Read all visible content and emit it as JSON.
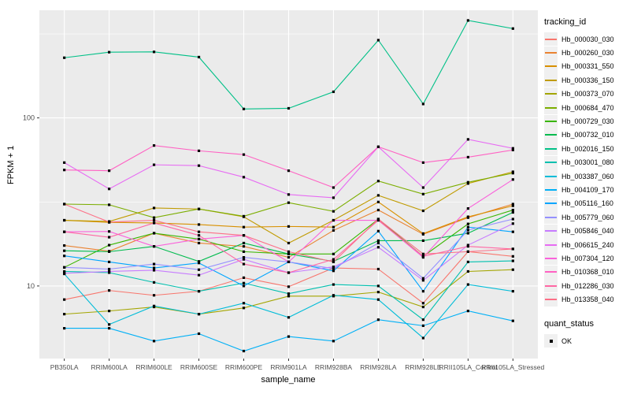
{
  "figure": {
    "panel_bg": "#EBEBEB",
    "gridline_color": "#FFFFFF",
    "tick_label_color": "#4D4D4D",
    "text_color": "#000000",
    "legend": {
      "tracking_title": "tracking_id",
      "quant_title": "quant_status",
      "quant_label": "OK"
    }
  },
  "chart_data": {
    "type": "line",
    "title": "",
    "xlabel": "sample_name",
    "ylabel": "FPKM + 1",
    "y_scale": "log10",
    "ylim": [
      3.7,
      437
    ],
    "y_major_ticks": [
      {
        "label": "100",
        "value": 100
      },
      {
        "label": "10",
        "value": 10
      }
    ],
    "y_minor_gridlines": [
      316,
      31.6
    ],
    "categories": [
      "PB350LA",
      "RRIM600LA",
      "RRIM600LE",
      "RRIM600SE",
      "RRIM600PE",
      "RRIM901LA",
      "RRIM928BA",
      "RRIM928LA",
      "RRIM928LE",
      "RRII105LA_Control",
      "RRII105LA_Stressed"
    ],
    "point_shape": "black-square",
    "legend_position": "right",
    "series": [
      {
        "name": "Hb_000030_030",
        "color": "#F8766D",
        "values": [
          8.3,
          9.4,
          8.8,
          9.3,
          11.2,
          9.9,
          12.8,
          12.6,
          7.9,
          16.0,
          15.0
        ]
      },
      {
        "name": "Hb_000260_030",
        "color": "#EA8331",
        "values": [
          17.4,
          16.1,
          20.6,
          18.0,
          17.2,
          14.8,
          21.4,
          28.3,
          20.3,
          25.5,
          30.7
        ]
      },
      {
        "name": "Hb_000331_550",
        "color": "#D89000",
        "values": [
          24.6,
          23.9,
          23.7,
          23.2,
          22.4,
          22.6,
          22.4,
          31.6,
          20.5,
          25.8,
          30.0
        ]
      },
      {
        "name": "Hb_000336_150",
        "color": "#C09B00",
        "values": [
          24.6,
          24.2,
          29.1,
          28.7,
          25.8,
          18.0,
          24.6,
          34.6,
          28.0,
          40.7,
          47.8
        ]
      },
      {
        "name": "Hb_000373_070",
        "color": "#A3A500",
        "values": [
          6.8,
          7.1,
          7.5,
          6.8,
          7.4,
          8.7,
          8.7,
          9.2,
          7.5,
          12.2,
          12.5
        ]
      },
      {
        "name": "Hb_000684_470",
        "color": "#7CAE00",
        "values": [
          30.7,
          30.4,
          25.5,
          28.7,
          26.0,
          31.3,
          27.8,
          42.1,
          35.2,
          41.4,
          46.9
        ]
      },
      {
        "name": "Hb_000729_030",
        "color": "#39B600",
        "values": [
          12.9,
          17.5,
          20.6,
          19.0,
          16.0,
          15.5,
          15.5,
          25.0,
          15.0,
          23.4,
          28.3
        ]
      },
      {
        "name": "Hb_000732_010",
        "color": "#00BB4E",
        "values": [
          16.2,
          16.0,
          17.2,
          14.0,
          18.0,
          15.5,
          14.0,
          18.6,
          18.6,
          20.6,
          27.4
        ]
      },
      {
        "name": "Hb_002016_150",
        "color": "#00C087",
        "values": [
          228,
          246,
          247,
          230,
          113,
          114,
          143,
          290,
          121,
          380,
          340
        ]
      },
      {
        "name": "Hb_003001_080",
        "color": "#00C0AF",
        "values": [
          12.2,
          12.0,
          10.5,
          9.3,
          10.4,
          9.0,
          10.2,
          10.0,
          6.3,
          13.9,
          14.1
        ]
      },
      {
        "name": "Hb_003387_060",
        "color": "#00BCD8",
        "values": [
          11.8,
          5.9,
          7.6,
          6.8,
          7.9,
          6.5,
          8.8,
          8.3,
          4.9,
          10.2,
          9.3
        ]
      },
      {
        "name": "Hb_004109_170",
        "color": "#00B0F6",
        "values": [
          5.6,
          5.6,
          4.7,
          5.2,
          4.1,
          5.0,
          4.7,
          6.3,
          5.8,
          7.1,
          6.2
        ]
      },
      {
        "name": "Hb_005116_160",
        "color": "#00A5FF",
        "values": [
          15.1,
          13.9,
          12.8,
          13.7,
          10.0,
          13.9,
          12.3,
          21.2,
          9.3,
          22.4,
          21.0
        ]
      },
      {
        "name": "Hb_005779_060",
        "color": "#9590FF",
        "values": [
          12.9,
          12.6,
          13.5,
          12.5,
          14.8,
          13.9,
          12.7,
          18.0,
          11.1,
          21.5,
          25.0
        ]
      },
      {
        "name": "Hb_005846_040",
        "color": "#C77CFF",
        "values": [
          11.9,
          12.2,
          12.4,
          11.6,
          14.4,
          12.0,
          13.0,
          17.0,
          10.8,
          17.5,
          23.5
        ]
      },
      {
        "name": "Hb_006615_240",
        "color": "#E76BF3",
        "values": [
          54.2,
          37.8,
          52.6,
          52.0,
          44.4,
          35.0,
          33.5,
          67.3,
          38.5,
          74.5,
          65.9
        ]
      },
      {
        "name": "Hb_007304_120",
        "color": "#FA62DB",
        "values": [
          21.0,
          21.1,
          17.2,
          19.0,
          20.0,
          13.9,
          24.6,
          24.6,
          14.8,
          28.9,
          43.0
        ]
      },
      {
        "name": "Hb_010368_010",
        "color": "#FF61C3",
        "values": [
          49.0,
          48.5,
          68.5,
          63.7,
          60.5,
          48.5,
          38.5,
          67.3,
          54.2,
          58.4,
          64.4
        ]
      },
      {
        "name": "Hb_012286_030",
        "color": "#FF67A4",
        "values": [
          21.0,
          19.5,
          23.7,
          20.0,
          13.5,
          12.0,
          14.4,
          24.6,
          15.0,
          17.2,
          16.6
        ]
      },
      {
        "name": "Hb_013358_040",
        "color": "#FD6F87",
        "values": [
          30.7,
          24.0,
          24.6,
          21.0,
          20.0,
          16.0,
          13.9,
          25.0,
          15.5,
          16.0,
          16.6
        ]
      }
    ]
  }
}
